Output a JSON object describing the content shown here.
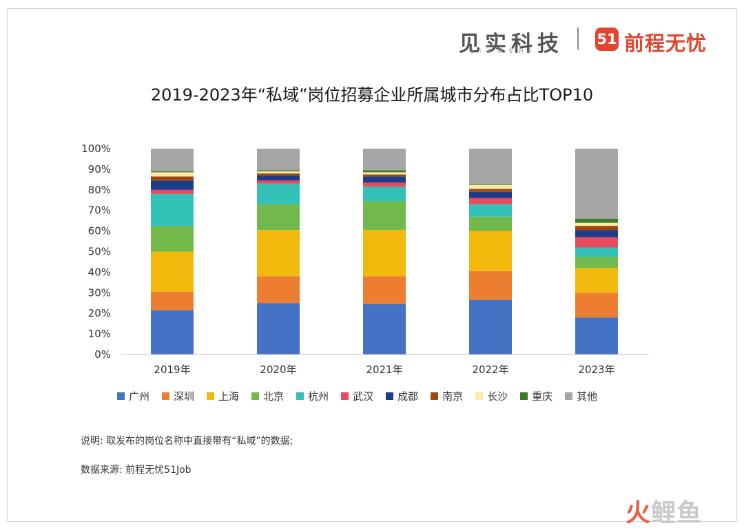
{
  "header": {
    "brand_jianshi": "见实科技",
    "brand_jianshi_en": "JIANSHI",
    "brand_51job_mark": "51",
    "brand_51job": "前程无忧"
  },
  "chart_data": {
    "type": "bar",
    "stacked": true,
    "title": "2019-2023年“私域”岗位招募企业所属城市分布占比TOP10",
    "xlabel": "",
    "ylabel": "",
    "ylim": [
      0,
      100
    ],
    "yticks": [
      "0%",
      "10%",
      "20%",
      "30%",
      "40%",
      "50%",
      "60%",
      "70%",
      "80%",
      "90%",
      "100%"
    ],
    "categories": [
      "2019年",
      "2020年",
      "2021年",
      "2022年",
      "2023年"
    ],
    "legend_position": "bottom",
    "grid": false,
    "series": [
      {
        "name": "广州",
        "color": "#4472c4",
        "values": [
          21.5,
          25.0,
          24.5,
          26.5,
          18.0
        ]
      },
      {
        "name": "深圳",
        "color": "#ed7d31",
        "values": [
          9.0,
          13.0,
          13.5,
          14.0,
          12.0
        ]
      },
      {
        "name": "上海",
        "color": "#f2b90c",
        "values": [
          19.5,
          22.5,
          22.5,
          19.5,
          12.0
        ]
      },
      {
        "name": "北京",
        "color": "#70b94a",
        "values": [
          12.5,
          12.5,
          14.0,
          7.0,
          5.5
        ]
      },
      {
        "name": "杭州",
        "color": "#33c0b7",
        "values": [
          15.5,
          10.0,
          7.0,
          6.0,
          4.5
        ]
      },
      {
        "name": "武汉",
        "color": "#e84a5f",
        "values": [
          2.0,
          1.5,
          2.0,
          3.0,
          5.0
        ]
      },
      {
        "name": "成都",
        "color": "#1f3c88",
        "values": [
          4.5,
          2.5,
          3.0,
          3.0,
          3.5
        ]
      },
      {
        "name": "南京",
        "color": "#9e480e",
        "values": [
          2.0,
          1.0,
          1.0,
          1.5,
          2.0
        ]
      },
      {
        "name": "长沙",
        "color": "#ffe9a8",
        "values": [
          2.0,
          1.0,
          1.0,
          2.0,
          1.5
        ]
      },
      {
        "name": "重庆",
        "color": "#3a7d2b",
        "values": [
          0.5,
          0.5,
          1.0,
          0.5,
          2.0
        ]
      },
      {
        "name": "其他",
        "color": "#a5a5a5",
        "values": [
          11.0,
          10.5,
          10.5,
          17.0,
          34.0
        ]
      }
    ]
  },
  "notes": {
    "line1": "说明: 取发布的岗位名称中直接带有“私域”的数据;",
    "line2": "数据来源: 前程无忧51Job"
  },
  "watermark": {
    "part1": "火",
    "part2": "鲤鱼"
  },
  "colors": {
    "axis": "#bfbfbf",
    "tick_text": "#333333",
    "brand_red": "#e2442f"
  }
}
